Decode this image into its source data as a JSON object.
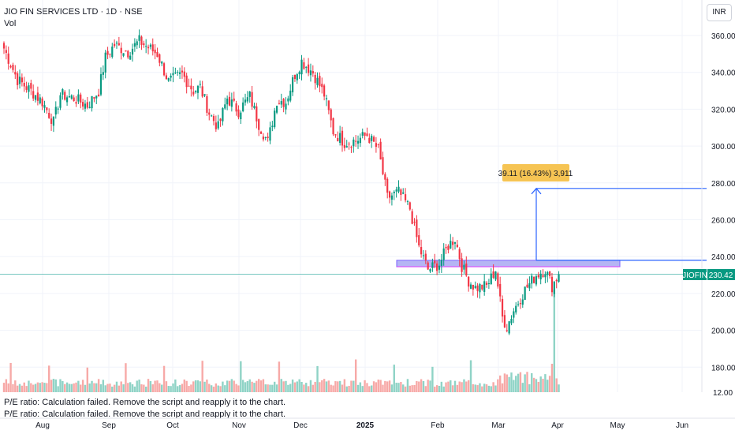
{
  "header": {
    "symbol_title": "JIO FIN SERVICES LTD · 1D · NSE",
    "vol_label": "Vol",
    "currency": "INR"
  },
  "notes": [
    "P/E ratio: Calculation failed. Remove the script and reapply it to the chart.",
    "P/E ratio: Calculation failed. Remove the script and reapply it to the chart."
  ],
  "colors": {
    "up": "#089981",
    "down": "#f23645",
    "vol_up": "#8fd3c6",
    "vol_down": "#f7a9a7",
    "grid": "#f0f3fa",
    "axis_text": "#131722",
    "measure": "#2962ff",
    "measure_label_bg": "#f6c453",
    "zone_fill": "#9c9cf0",
    "price_line": "#26a69a"
  },
  "chart_data": {
    "type": "candlestick",
    "y_ticks": [
      "360.00",
      "340.00",
      "320.00",
      "300.00",
      "280.00",
      "260.00",
      "240.00",
      "220.00",
      "200.00",
      "180.00"
    ],
    "y_bottom_tick": "12.00",
    "ylim": [
      175,
      365
    ],
    "x_labels": [
      "Aug",
      "Sep",
      "Oct",
      "Nov",
      "Dec",
      "2025",
      "Feb",
      "Mar",
      "Apr",
      "May",
      "Jun"
    ],
    "price_label": {
      "symbol": "JIOFIN",
      "value": "230.42"
    },
    "last_price": 230.42,
    "measure_label": "39.11 (16.43%) 3,911",
    "measure": {
      "from": 238,
      "to": 277
    },
    "zone": {
      "low": 234.5,
      "high": 238
    },
    "grid": true,
    "series_anchors": [
      [
        353,
        0
      ],
      [
        336,
        6
      ],
      [
        330,
        12
      ],
      [
        324,
        17
      ],
      [
        313,
        22
      ],
      [
        328,
        25
      ],
      [
        326,
        31
      ],
      [
        322,
        37
      ],
      [
        330,
        42
      ],
      [
        348,
        45
      ],
      [
        355,
        49
      ],
      [
        351,
        55
      ],
      [
        357,
        60
      ],
      [
        350,
        68
      ],
      [
        335,
        73
      ],
      [
        339,
        79
      ],
      [
        330,
        84
      ],
      [
        332,
        87
      ],
      [
        318,
        91
      ],
      [
        310,
        95
      ],
      [
        326,
        99
      ],
      [
        319,
        104
      ],
      [
        327,
        109
      ],
      [
        312,
        113
      ],
      [
        302,
        117
      ],
      [
        325,
        121
      ],
      [
        324,
        125
      ],
      [
        339,
        129
      ],
      [
        346,
        132
      ],
      [
        340,
        137
      ],
      [
        328,
        142
      ],
      [
        308,
        146
      ],
      [
        302,
        151
      ],
      [
        303,
        156
      ],
      [
        306,
        161
      ],
      [
        298,
        166
      ],
      [
        272,
        170
      ],
      [
        275,
        175
      ],
      [
        266,
        180
      ],
      [
        245,
        184
      ],
      [
        233,
        188
      ],
      [
        236,
        193
      ],
      [
        246,
        197
      ],
      [
        250,
        200
      ],
      [
        235,
        203
      ],
      [
        227,
        206
      ],
      [
        223,
        209
      ],
      [
        224,
        214
      ],
      [
        233,
        218
      ],
      [
        207,
        221
      ],
      [
        202,
        223
      ],
      [
        211,
        226
      ],
      [
        222,
        231
      ],
      [
        230,
        236
      ],
      [
        233,
        240
      ],
      [
        224,
        243
      ],
      [
        230.42,
        246
      ]
    ]
  }
}
